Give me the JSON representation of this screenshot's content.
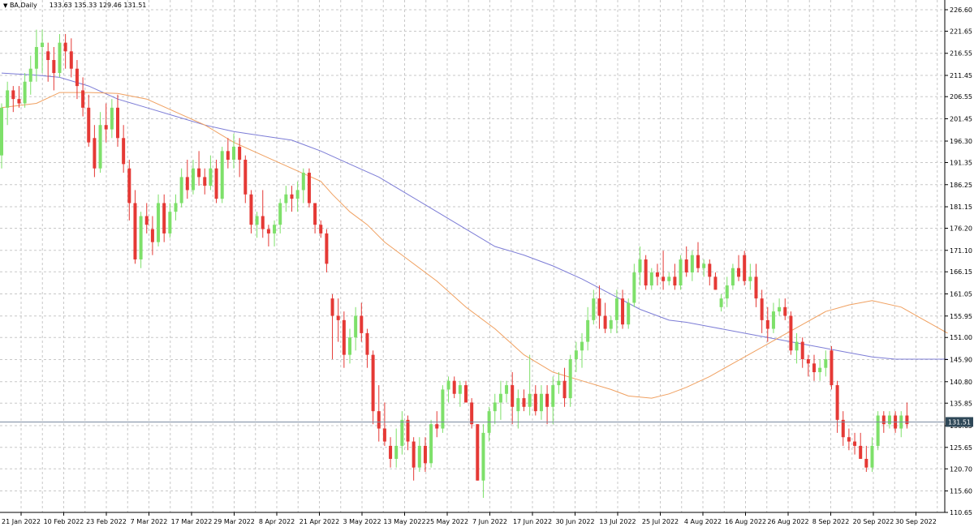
{
  "header": {
    "symbol": "BA,Daily",
    "ohlc": "133.63 135.33 129.46 131.51"
  },
  "colors": {
    "grid": "#c8c8c8",
    "up": "#7ee06a",
    "down": "#e53935",
    "ma_fast": "#f0a060",
    "ma_slow": "#7c7cd6",
    "price_line": "#7a8aa0",
    "price_label_bg": "#2f4858"
  },
  "chart_data": {
    "type": "candlestick",
    "title": "BA,Daily",
    "last_price": "131.51",
    "ylim": [
      110.65,
      226.6
    ],
    "y_ticks": [
      "226.60",
      "221.65",
      "216.55",
      "211.45",
      "206.55",
      "201.45",
      "196.30",
      "191.35",
      "186.25",
      "181.15",
      "176.20",
      "171.10",
      "166.15",
      "161.05",
      "155.95",
      "151.00",
      "145.90",
      "140.80",
      "135.85",
      "130.65",
      "125.65",
      "120.70",
      "115.60",
      "110.65"
    ],
    "x_ticks": [
      "21 Jan 2022",
      "10 Feb 2022",
      "23 Feb 2022",
      "7 Mar 2022",
      "17 Mar 2022",
      "29 Mar 2022",
      "8 Apr 2022",
      "21 Apr 2022",
      "3 May 2022",
      "13 May 2022",
      "25 May 2022",
      "7 Jun 2022",
      "17 Jun 2022",
      "30 Jun 2022",
      "13 Jul 2022",
      "25 Jul 2022",
      "4 Aug 2022",
      "16 Aug 2022",
      "26 Aug 2022",
      "8 Sep 2022",
      "20 Sep 2022",
      "30 Sep 2022"
    ],
    "candles": [
      [
        193,
        205,
        190,
        204
      ],
      [
        204,
        210,
        200,
        208
      ],
      [
        208,
        209,
        203,
        206
      ],
      [
        206,
        209,
        204,
        205
      ],
      [
        205,
        212,
        204,
        210
      ],
      [
        210,
        216,
        207,
        213
      ],
      [
        213,
        222,
        210,
        218
      ],
      [
        218,
        222,
        212,
        219
      ],
      [
        217,
        219,
        210,
        215
      ],
      [
        215,
        218,
        208,
        212
      ],
      [
        212,
        221,
        211,
        219
      ],
      [
        219,
        221,
        213,
        217
      ],
      [
        217,
        220,
        211,
        213
      ],
      [
        213,
        215,
        206,
        209
      ],
      [
        208,
        211,
        202,
        204
      ],
      [
        204,
        207,
        195,
        196
      ],
      [
        197,
        200,
        188,
        190
      ],
      [
        190,
        203,
        189,
        200
      ],
      [
        200,
        205,
        196,
        199
      ],
      [
        199,
        206,
        197,
        204
      ],
      [
        204,
        207,
        195,
        197
      ],
      [
        197,
        200,
        189,
        191
      ],
      [
        190,
        192,
        178,
        182
      ],
      [
        182,
        185,
        168,
        169
      ],
      [
        169,
        180,
        167,
        179
      ],
      [
        179,
        182,
        175,
        177
      ],
      [
        176,
        179,
        170,
        173
      ],
      [
        173,
        184,
        172,
        182
      ],
      [
        182,
        184,
        173,
        175
      ],
      [
        175,
        182,
        174,
        180
      ],
      [
        180,
        184,
        178,
        182
      ],
      [
        182,
        190,
        181,
        188
      ],
      [
        188,
        192,
        183,
        185
      ],
      [
        185,
        192,
        184,
        190
      ],
      [
        190,
        194,
        186,
        188
      ],
      [
        188,
        190,
        184,
        186
      ],
      [
        186,
        193,
        185,
        190
      ],
      [
        190,
        192,
        182,
        183
      ],
      [
        183,
        195,
        182,
        194
      ],
      [
        194,
        197,
        190,
        192
      ],
      [
        192,
        198,
        190,
        195
      ],
      [
        195,
        197,
        188,
        192
      ],
      [
        192,
        193,
        182,
        184
      ],
      [
        184,
        185,
        175,
        177
      ],
      [
        177,
        180,
        174,
        179
      ],
      [
        179,
        185,
        174,
        176
      ],
      [
        176,
        177,
        172,
        175
      ],
      [
        175,
        178,
        172,
        177
      ],
      [
        177,
        183,
        175,
        182
      ],
      [
        182,
        186,
        180,
        184
      ],
      [
        184,
        186,
        180,
        183
      ],
      [
        183,
        187,
        180,
        185
      ],
      [
        185,
        190,
        182,
        189
      ],
      [
        189,
        190,
        181,
        182
      ],
      [
        182,
        182,
        175,
        177
      ],
      [
        177,
        178,
        174,
        175
      ],
      [
        175,
        176,
        166,
        168
      ],
      [
        160,
        161,
        146,
        156
      ],
      [
        156,
        160,
        150,
        155
      ],
      [
        155,
        157,
        144,
        147
      ],
      [
        147,
        153,
        145,
        151
      ],
      [
        151,
        158,
        148,
        156
      ],
      [
        156,
        159,
        150,
        152
      ],
      [
        152,
        153,
        144,
        147
      ],
      [
        147,
        148,
        131,
        134
      ],
      [
        134,
        140,
        127,
        130
      ],
      [
        130,
        136,
        126,
        127
      ],
      [
        126,
        128,
        121,
        123
      ],
      [
        123,
        130,
        121,
        126
      ],
      [
        126,
        134,
        124,
        132
      ],
      [
        132,
        133,
        125,
        127
      ],
      [
        127,
        128,
        118,
        121
      ],
      [
        121,
        128,
        120,
        126
      ],
      [
        126,
        128,
        120,
        122
      ],
      [
        122,
        132,
        121,
        131
      ],
      [
        131,
        134,
        128,
        130
      ],
      [
        130,
        140,
        129,
        139
      ],
      [
        139,
        142,
        136,
        141
      ],
      [
        141,
        142,
        137,
        138
      ],
      [
        138,
        141,
        135,
        140
      ],
      [
        140,
        141,
        136,
        136
      ],
      [
        136,
        137,
        130,
        131
      ],
      [
        131,
        131,
        118,
        118
      ],
      [
        118,
        131,
        114,
        129
      ],
      [
        129,
        135,
        127,
        134
      ],
      [
        134,
        138,
        131,
        136
      ],
      [
        136,
        141,
        132,
        138
      ],
      [
        138,
        141,
        136,
        140
      ],
      [
        140,
        143,
        131,
        135
      ],
      [
        134,
        139,
        130,
        137
      ],
      [
        137,
        139,
        134,
        135
      ],
      [
        135,
        147,
        133,
        138
      ],
      [
        138,
        140,
        133,
        134
      ],
      [
        134,
        140,
        132,
        138
      ],
      [
        138,
        140,
        131,
        135
      ],
      [
        135,
        142,
        131,
        140
      ],
      [
        140,
        143,
        138,
        141
      ],
      [
        141,
        144,
        135,
        137
      ],
      [
        137,
        147,
        135,
        146
      ],
      [
        146,
        150,
        143,
        148
      ],
      [
        148,
        152,
        144,
        150
      ],
      [
        150,
        158,
        148,
        155
      ],
      [
        155,
        162,
        154,
        160
      ],
      [
        160,
        163,
        153,
        156
      ],
      [
        156,
        159,
        152,
        153
      ],
      [
        153,
        156,
        152,
        155
      ],
      [
        155,
        162,
        152,
        160
      ],
      [
        160,
        162,
        153,
        154
      ],
      [
        154,
        160,
        153,
        159
      ],
      [
        159,
        168,
        158,
        166
      ],
      [
        166,
        172,
        163,
        169
      ],
      [
        169,
        170,
        162,
        163
      ],
      [
        163,
        167,
        162,
        166
      ],
      [
        166,
        168,
        163,
        165
      ],
      [
        165,
        171,
        162,
        164
      ],
      [
        164,
        166,
        163,
        165
      ],
      [
        165,
        168,
        162,
        163
      ],
      [
        163,
        170,
        162,
        169
      ],
      [
        169,
        172,
        165,
        166
      ],
      [
        166,
        171,
        164,
        170
      ],
      [
        170,
        173,
        166,
        167
      ],
      [
        167,
        169,
        165,
        168
      ],
      [
        168,
        169,
        163,
        165
      ],
      [
        165,
        166,
        162,
        162
      ],
      [
        158,
        161,
        157,
        160
      ],
      [
        160,
        165,
        158,
        163
      ],
      [
        163,
        168,
        162,
        167
      ],
      [
        167,
        170,
        164,
        165
      ],
      [
        170,
        171,
        163,
        164
      ],
      [
        164,
        168,
        162,
        165
      ],
      [
        165,
        168,
        158,
        160
      ],
      [
        160,
        162,
        152,
        155
      ],
      [
        155,
        158,
        150,
        153
      ],
      [
        153,
        159,
        152,
        157
      ],
      [
        157,
        160,
        156,
        158
      ],
      [
        158,
        160,
        155,
        156
      ],
      [
        156,
        157,
        147,
        148
      ],
      [
        148,
        152,
        145,
        150
      ],
      [
        150,
        151,
        144,
        146
      ],
      [
        146,
        147,
        142,
        145
      ],
      [
        145,
        147,
        141,
        143
      ],
      [
        143,
        146,
        141,
        144
      ],
      [
        144,
        148,
        142,
        146
      ],
      [
        148,
        149,
        139,
        140
      ],
      [
        140,
        141,
        129,
        132
      ],
      [
        132,
        134,
        126,
        128
      ],
      [
        128,
        130,
        125,
        127
      ],
      [
        127,
        129,
        124,
        126
      ],
      [
        126,
        129,
        123,
        123
      ],
      [
        123,
        126,
        120,
        121
      ],
      [
        121,
        128,
        120,
        126
      ],
      [
        126,
        134,
        125,
        133
      ],
      [
        133,
        134,
        129,
        131
      ],
      [
        131,
        134,
        130,
        133
      ],
      [
        133,
        134,
        129,
        130
      ],
      [
        130,
        134,
        128,
        133
      ],
      [
        133,
        136,
        130,
        131
      ]
    ],
    "ma_fast": [
      [
        0,
        204
      ],
      [
        6,
        205
      ],
      [
        10,
        207.5
      ],
      [
        15,
        207.5
      ],
      [
        20,
        207.3
      ],
      [
        25,
        206
      ],
      [
        30,
        203
      ],
      [
        35,
        200
      ],
      [
        40,
        196
      ],
      [
        45,
        193
      ],
      [
        50,
        190
      ],
      [
        55,
        187
      ],
      [
        57,
        184
      ],
      [
        60,
        180
      ],
      [
        63,
        177
      ],
      [
        66,
        173
      ],
      [
        70,
        169
      ],
      [
        75,
        164
      ],
      [
        80,
        158
      ],
      [
        85,
        153
      ],
      [
        90,
        147
      ],
      [
        95,
        143
      ],
      [
        100,
        141
      ],
      [
        105,
        139
      ],
      [
        108,
        137.5
      ],
      [
        112,
        137
      ],
      [
        115,
        138
      ],
      [
        118,
        139.5
      ],
      [
        122,
        142
      ],
      [
        126,
        145
      ],
      [
        130,
        148
      ],
      [
        134,
        151
      ],
      [
        138,
        154
      ],
      [
        142,
        157
      ],
      [
        146,
        158.5
      ],
      [
        150,
        159.5
      ],
      [
        155,
        158
      ],
      [
        159,
        155
      ],
      [
        163,
        152
      ]
    ],
    "ma_slow": [
      [
        0,
        212
      ],
      [
        6,
        211.5
      ],
      [
        10,
        211
      ],
      [
        15,
        209
      ],
      [
        20,
        206
      ],
      [
        25,
        204
      ],
      [
        30,
        202
      ],
      [
        35,
        200
      ],
      [
        40,
        198.5
      ],
      [
        45,
        197.5
      ],
      [
        50,
        196.5
      ],
      [
        55,
        194
      ],
      [
        60,
        191
      ],
      [
        65,
        188
      ],
      [
        70,
        184
      ],
      [
        75,
        180
      ],
      [
        80,
        176
      ],
      [
        85,
        172
      ],
      [
        90,
        170
      ],
      [
        95,
        167.5
      ],
      [
        100,
        164.5
      ],
      [
        105,
        161
      ],
      [
        110,
        157.5
      ],
      [
        115,
        155
      ],
      [
        118,
        154.5
      ],
      [
        122,
        153.5
      ],
      [
        126,
        152.5
      ],
      [
        130,
        151.5
      ],
      [
        134,
        150.5
      ],
      [
        138,
        149.5
      ],
      [
        142,
        148.5
      ],
      [
        146,
        147.5
      ],
      [
        150,
        146.5
      ],
      [
        154,
        146
      ],
      [
        158,
        146
      ],
      [
        163,
        146
      ]
    ]
  }
}
